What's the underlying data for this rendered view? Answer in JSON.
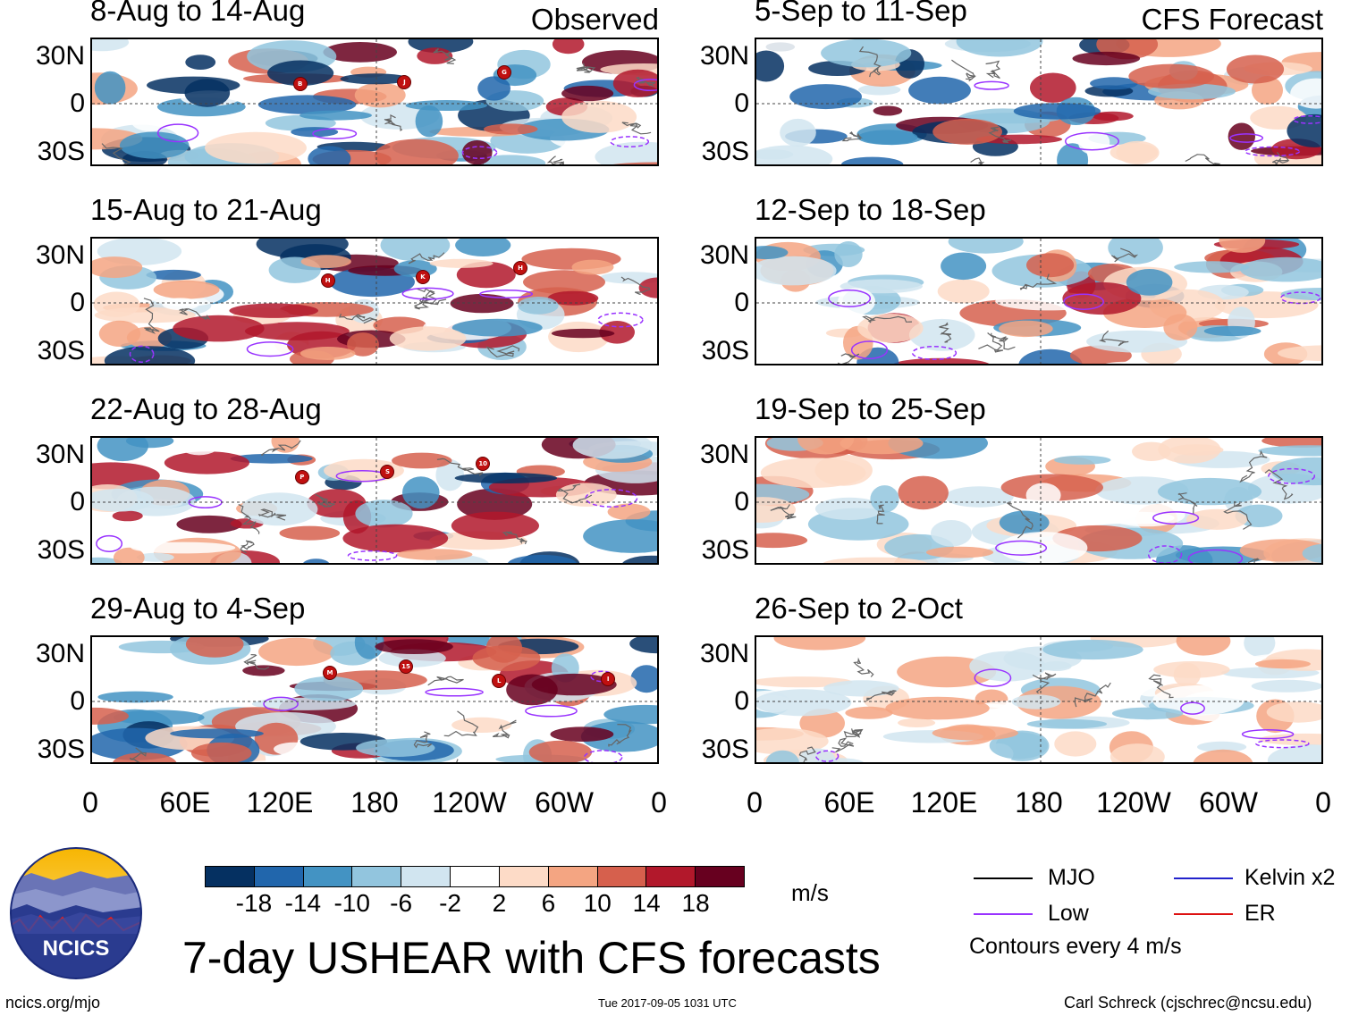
{
  "panels_observed": [
    {
      "title": "8-Aug to 14-Aug",
      "tag": "Observed",
      "storms": [
        "B",
        "J",
        "G"
      ]
    },
    {
      "title": "15-Aug to 21-Aug",
      "tag": "",
      "storms": [
        "H",
        "K",
        "H"
      ]
    },
    {
      "title": "22-Aug to 28-Aug",
      "tag": "",
      "storms": [
        "P",
        "S",
        "10"
      ]
    },
    {
      "title": "29-Aug to 4-Sep",
      "tag": "",
      "storms": [
        "M",
        "15",
        "L",
        "I"
      ]
    }
  ],
  "panels_forecast": [
    {
      "title": "5-Sep to 11-Sep",
      "tag": "CFS Forecast"
    },
    {
      "title": "12-Sep to 18-Sep",
      "tag": ""
    },
    {
      "title": "19-Sep to 25-Sep",
      "tag": ""
    },
    {
      "title": "26-Sep to 2-Oct",
      "tag": ""
    }
  ],
  "lat_labels": [
    "30N",
    "0",
    "30S"
  ],
  "lon_labels": [
    "0",
    "60E",
    "120E",
    "180",
    "120W",
    "60W",
    "0"
  ],
  "colorbar": {
    "colors": [
      "#053061",
      "#2166ac",
      "#4393c3",
      "#92c5de",
      "#d1e5f0",
      "#ffffff",
      "#fddbc7",
      "#f4a582",
      "#d6604d",
      "#b2182b",
      "#67001f"
    ],
    "labels": [
      "-18",
      "-14",
      "-10",
      "-6",
      "-2",
      "2",
      "6",
      "10",
      "14",
      "18"
    ],
    "units": "m/s"
  },
  "legend": {
    "mjo": {
      "label": "MJO",
      "color": "#000000"
    },
    "low": {
      "label": "Low",
      "color": "#9933ff"
    },
    "kelvin": {
      "label": "Kelvin x2",
      "color": "#2222cc"
    },
    "er": {
      "label": "ER",
      "color": "#dd1111"
    },
    "contours_note": "Contours every 4 m/s"
  },
  "logo_text": "NCICS",
  "main_title": "7-day USHEAR with CFS forecasts",
  "footer": {
    "url": "ncics.org/mjo",
    "timestamp": "Tue 2017-09-05 1031 UTC",
    "credit": "Carl Schreck (cjschrec@ncsu.edu)"
  }
}
